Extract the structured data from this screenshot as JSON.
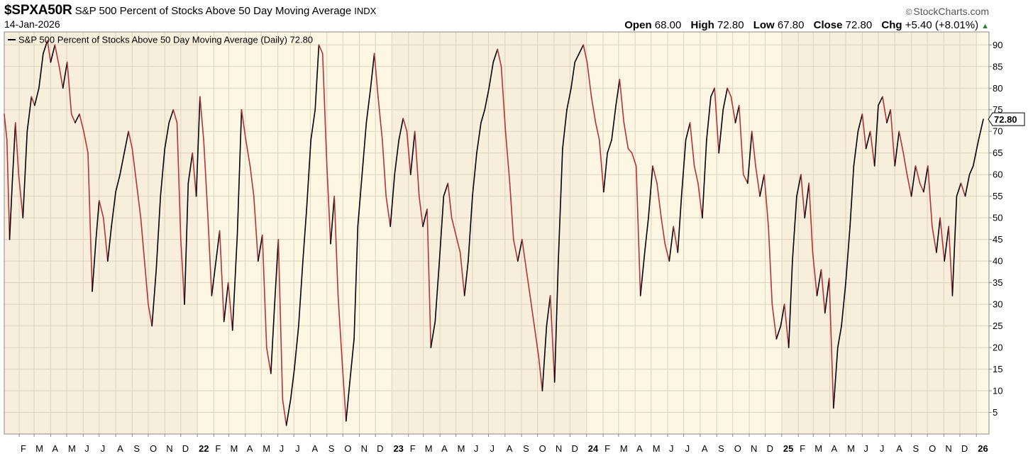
{
  "header": {
    "ticker": "$SPXA50R",
    "name": "S&P 500 Percent of Stocks Above 50 Day Moving Average",
    "exchange": "INDX",
    "date": "14-Jan-2026",
    "brand_symbol": "©",
    "brand": "StockCharts.com",
    "open_label": "Open",
    "open": "68.00",
    "high_label": "High",
    "high": "72.80",
    "low_label": "Low",
    "low": "67.80",
    "close_label": "Close",
    "close": "72.80",
    "chg_label": "Chg",
    "chg": "+5.40 (+8.01%)",
    "chg_arrow": "▲"
  },
  "legend": "S&P 500 Percent of Stocks Above 50 Day Moving Average (Daily) 72.80",
  "colors": {
    "up": "#000000",
    "down": "#b5323c",
    "band_a": "#f7efdb",
    "band_b": "#fdf6e3",
    "grid": "#ddd3bd",
    "last_value_bg": "#ffffff"
  },
  "chart_data": {
    "type": "line",
    "ylim": [
      0,
      93
    ],
    "yticks": [
      5,
      10,
      15,
      20,
      25,
      30,
      35,
      40,
      45,
      50,
      55,
      60,
      65,
      70,
      75,
      80,
      85,
      90
    ],
    "last_value": "72.80",
    "x_start": "2021-01-04",
    "x_end": "2026-01-14",
    "month_labels": [
      "F",
      "M",
      "A",
      "M",
      "J",
      "J",
      "A",
      "S",
      "O",
      "N",
      "D",
      "22",
      "F",
      "M",
      "A",
      "M",
      "J",
      "J",
      "A",
      "S",
      "O",
      "N",
      "D",
      "23",
      "F",
      "M",
      "A",
      "M",
      "J",
      "J",
      "A",
      "S",
      "O",
      "N",
      "D",
      "24",
      "F",
      "M",
      "A",
      "M",
      "J",
      "J",
      "A",
      "S",
      "O",
      "N",
      "D",
      "25",
      "F",
      "M",
      "A",
      "M",
      "J",
      "J",
      "A",
      "S",
      "O",
      "N",
      "D",
      "26"
    ],
    "month_dates": [
      "2021-02-01",
      "2021-03-01",
      "2021-04-01",
      "2021-05-01",
      "2021-06-01",
      "2021-07-01",
      "2021-08-01",
      "2021-09-01",
      "2021-10-01",
      "2021-11-01",
      "2021-12-01",
      "2022-01-01",
      "2022-02-01",
      "2022-03-01",
      "2022-04-01",
      "2022-05-01",
      "2022-06-01",
      "2022-07-01",
      "2022-08-01",
      "2022-09-01",
      "2022-10-01",
      "2022-11-01",
      "2022-12-01",
      "2023-01-01",
      "2023-02-01",
      "2023-03-01",
      "2023-04-01",
      "2023-05-01",
      "2023-06-01",
      "2023-07-01",
      "2023-08-01",
      "2023-09-01",
      "2023-10-01",
      "2023-11-01",
      "2023-12-01",
      "2024-01-01",
      "2024-02-01",
      "2024-03-01",
      "2024-04-01",
      "2024-05-01",
      "2024-06-01",
      "2024-07-01",
      "2024-08-01",
      "2024-09-01",
      "2024-10-01",
      "2024-11-01",
      "2024-12-01",
      "2025-01-01",
      "2025-02-01",
      "2025-03-01",
      "2025-04-01",
      "2025-05-01",
      "2025-06-01",
      "2025-07-01",
      "2025-08-01",
      "2025-09-01",
      "2025-10-01",
      "2025-11-01",
      "2025-12-01",
      "2026-01-01"
    ],
    "series": [
      {
        "points": [
          [
            "2021-01-04",
            74
          ],
          [
            "2021-01-09",
            68
          ],
          [
            "2021-01-14",
            45
          ],
          [
            "2021-01-19",
            58
          ],
          [
            "2021-01-25",
            72
          ],
          [
            "2021-01-31",
            60
          ],
          [
            "2021-02-08",
            50
          ],
          [
            "2021-02-16",
            70
          ],
          [
            "2021-02-24",
            78
          ],
          [
            "2021-03-02",
            76
          ],
          [
            "2021-03-10",
            80
          ],
          [
            "2021-03-18",
            88
          ],
          [
            "2021-03-26",
            91
          ],
          [
            "2021-04-01",
            86
          ],
          [
            "2021-04-09",
            90
          ],
          [
            "2021-04-17",
            85
          ],
          [
            "2021-04-24",
            80
          ],
          [
            "2021-05-02",
            86
          ],
          [
            "2021-05-10",
            74
          ],
          [
            "2021-05-17",
            72
          ],
          [
            "2021-05-25",
            74
          ],
          [
            "2021-06-02",
            70
          ],
          [
            "2021-06-10",
            65
          ],
          [
            "2021-06-18",
            33
          ],
          [
            "2021-06-25",
            45
          ],
          [
            "2021-07-01",
            54
          ],
          [
            "2021-07-09",
            50
          ],
          [
            "2021-07-17",
            40
          ],
          [
            "2021-07-24",
            48
          ],
          [
            "2021-08-01",
            56
          ],
          [
            "2021-08-09",
            60
          ],
          [
            "2021-08-17",
            65
          ],
          [
            "2021-08-25",
            70
          ],
          [
            "2021-09-01",
            66
          ],
          [
            "2021-09-09",
            58
          ],
          [
            "2021-09-17",
            50
          ],
          [
            "2021-09-24",
            40
          ],
          [
            "2021-10-01",
            30
          ],
          [
            "2021-10-08",
            25
          ],
          [
            "2021-10-16",
            38
          ],
          [
            "2021-10-24",
            55
          ],
          [
            "2021-11-01",
            66
          ],
          [
            "2021-11-09",
            72
          ],
          [
            "2021-11-17",
            75
          ],
          [
            "2021-11-24",
            72
          ],
          [
            "2021-12-01",
            45
          ],
          [
            "2021-12-08",
            30
          ],
          [
            "2021-12-15",
            58
          ],
          [
            "2021-12-23",
            65
          ],
          [
            "2021-12-30",
            55
          ],
          [
            "2022-01-06",
            78
          ],
          [
            "2022-01-13",
            68
          ],
          [
            "2022-01-21",
            50
          ],
          [
            "2022-01-28",
            32
          ],
          [
            "2022-02-05",
            40
          ],
          [
            "2022-02-12",
            47
          ],
          [
            "2022-02-20",
            26
          ],
          [
            "2022-02-28",
            35
          ],
          [
            "2022-03-08",
            24
          ],
          [
            "2022-03-17",
            46
          ],
          [
            "2022-03-25",
            75
          ],
          [
            "2022-04-02",
            68
          ],
          [
            "2022-04-10",
            62
          ],
          [
            "2022-04-17",
            55
          ],
          [
            "2022-04-25",
            40
          ],
          [
            "2022-05-03",
            46
          ],
          [
            "2022-05-11",
            20
          ],
          [
            "2022-05-19",
            14
          ],
          [
            "2022-05-26",
            30
          ],
          [
            "2022-06-02",
            45
          ],
          [
            "2022-06-10",
            8
          ],
          [
            "2022-06-17",
            2
          ],
          [
            "2022-06-25",
            8
          ],
          [
            "2022-07-02",
            15
          ],
          [
            "2022-07-10",
            25
          ],
          [
            "2022-07-18",
            40
          ],
          [
            "2022-07-25",
            52
          ],
          [
            "2022-08-02",
            68
          ],
          [
            "2022-08-10",
            75
          ],
          [
            "2022-08-17",
            90
          ],
          [
            "2022-08-24",
            88
          ],
          [
            "2022-09-01",
            62
          ],
          [
            "2022-09-08",
            44
          ],
          [
            "2022-09-15",
            55
          ],
          [
            "2022-09-22",
            32
          ],
          [
            "2022-09-30",
            16
          ],
          [
            "2022-10-07",
            3
          ],
          [
            "2022-10-14",
            12
          ],
          [
            "2022-10-22",
            22
          ],
          [
            "2022-10-29",
            48
          ],
          [
            "2022-11-06",
            60
          ],
          [
            "2022-11-14",
            72
          ],
          [
            "2022-11-22",
            80
          ],
          [
            "2022-11-29",
            88
          ],
          [
            "2022-12-06",
            78
          ],
          [
            "2022-12-14",
            68
          ],
          [
            "2022-12-21",
            55
          ],
          [
            "2022-12-29",
            48
          ],
          [
            "2023-01-06",
            60
          ],
          [
            "2023-01-14",
            68
          ],
          [
            "2023-01-22",
            73
          ],
          [
            "2023-01-29",
            70
          ],
          [
            "2023-02-05",
            60
          ],
          [
            "2023-02-13",
            70
          ],
          [
            "2023-02-21",
            55
          ],
          [
            "2023-02-28",
            48
          ],
          [
            "2023-03-08",
            52
          ],
          [
            "2023-03-15",
            20
          ],
          [
            "2023-03-23",
            26
          ],
          [
            "2023-03-31",
            40
          ],
          [
            "2023-04-08",
            55
          ],
          [
            "2023-04-16",
            58
          ],
          [
            "2023-04-23",
            50
          ],
          [
            "2023-05-01",
            46
          ],
          [
            "2023-05-09",
            42
          ],
          [
            "2023-05-17",
            32
          ],
          [
            "2023-05-24",
            40
          ],
          [
            "2023-06-01",
            55
          ],
          [
            "2023-06-09",
            65
          ],
          [
            "2023-06-17",
            72
          ],
          [
            "2023-06-24",
            75
          ],
          [
            "2023-07-02",
            80
          ],
          [
            "2023-07-10",
            86
          ],
          [
            "2023-07-18",
            89
          ],
          [
            "2023-07-25",
            85
          ],
          [
            "2023-08-02",
            70
          ],
          [
            "2023-08-10",
            58
          ],
          [
            "2023-08-17",
            45
          ],
          [
            "2023-08-25",
            40
          ],
          [
            "2023-09-02",
            45
          ],
          [
            "2023-09-10",
            38
          ],
          [
            "2023-09-17",
            32
          ],
          [
            "2023-09-25",
            25
          ],
          [
            "2023-10-03",
            18
          ],
          [
            "2023-10-10",
            10
          ],
          [
            "2023-10-18",
            25
          ],
          [
            "2023-10-25",
            32
          ],
          [
            "2023-11-02",
            12
          ],
          [
            "2023-11-09",
            40
          ],
          [
            "2023-11-17",
            66
          ],
          [
            "2023-11-25",
            75
          ],
          [
            "2023-12-03",
            80
          ],
          [
            "2023-12-10",
            86
          ],
          [
            "2023-12-18",
            88
          ],
          [
            "2023-12-26",
            90
          ],
          [
            "2024-01-02",
            86
          ],
          [
            "2024-01-10",
            78
          ],
          [
            "2024-01-18",
            72
          ],
          [
            "2024-01-25",
            68
          ],
          [
            "2024-02-02",
            56
          ],
          [
            "2024-02-09",
            65
          ],
          [
            "2024-02-17",
            68
          ],
          [
            "2024-02-25",
            76
          ],
          [
            "2024-03-03",
            82
          ],
          [
            "2024-03-11",
            72
          ],
          [
            "2024-03-19",
            66
          ],
          [
            "2024-03-26",
            65
          ],
          [
            "2024-04-03",
            62
          ],
          [
            "2024-04-11",
            32
          ],
          [
            "2024-04-19",
            42
          ],
          [
            "2024-04-26",
            50
          ],
          [
            "2024-05-04",
            62
          ],
          [
            "2024-05-12",
            58
          ],
          [
            "2024-05-20",
            50
          ],
          [
            "2024-05-27",
            44
          ],
          [
            "2024-06-04",
            40
          ],
          [
            "2024-06-12",
            48
          ],
          [
            "2024-06-20",
            42
          ],
          [
            "2024-06-27",
            55
          ],
          [
            "2024-07-05",
            68
          ],
          [
            "2024-07-13",
            72
          ],
          [
            "2024-07-21",
            62
          ],
          [
            "2024-07-28",
            58
          ],
          [
            "2024-08-05",
            50
          ],
          [
            "2024-08-13",
            68
          ],
          [
            "2024-08-21",
            78
          ],
          [
            "2024-08-28",
            80
          ],
          [
            "2024-09-05",
            65
          ],
          [
            "2024-09-13",
            75
          ],
          [
            "2024-09-21",
            80
          ],
          [
            "2024-09-28",
            78
          ],
          [
            "2024-10-06",
            72
          ],
          [
            "2024-10-13",
            76
          ],
          [
            "2024-10-21",
            60
          ],
          [
            "2024-10-29",
            58
          ],
          [
            "2024-11-06",
            70
          ],
          [
            "2024-11-13",
            62
          ],
          [
            "2024-11-21",
            55
          ],
          [
            "2024-11-29",
            60
          ],
          [
            "2024-12-07",
            48
          ],
          [
            "2024-12-14",
            30
          ],
          [
            "2024-12-22",
            22
          ],
          [
            "2024-12-30",
            25
          ],
          [
            "2025-01-06",
            30
          ],
          [
            "2025-01-14",
            20
          ],
          [
            "2025-01-21",
            40
          ],
          [
            "2025-01-29",
            55
          ],
          [
            "2025-02-06",
            60
          ],
          [
            "2025-02-13",
            50
          ],
          [
            "2025-02-21",
            58
          ],
          [
            "2025-02-28",
            42
          ],
          [
            "2025-03-08",
            32
          ],
          [
            "2025-03-16",
            38
          ],
          [
            "2025-03-23",
            28
          ],
          [
            "2025-03-31",
            36
          ],
          [
            "2025-04-08",
            6
          ],
          [
            "2025-04-16",
            20
          ],
          [
            "2025-04-23",
            25
          ],
          [
            "2025-05-01",
            35
          ],
          [
            "2025-05-09",
            48
          ],
          [
            "2025-05-16",
            62
          ],
          [
            "2025-05-24",
            70
          ],
          [
            "2025-06-01",
            74
          ],
          [
            "2025-06-08",
            66
          ],
          [
            "2025-06-16",
            70
          ],
          [
            "2025-06-24",
            62
          ],
          [
            "2025-07-01",
            76
          ],
          [
            "2025-07-09",
            78
          ],
          [
            "2025-07-17",
            72
          ],
          [
            "2025-07-24",
            75
          ],
          [
            "2025-08-01",
            62
          ],
          [
            "2025-08-09",
            70
          ],
          [
            "2025-08-17",
            65
          ],
          [
            "2025-08-24",
            60
          ],
          [
            "2025-09-01",
            55
          ],
          [
            "2025-09-09",
            62
          ],
          [
            "2025-09-17",
            58
          ],
          [
            "2025-09-24",
            56
          ],
          [
            "2025-10-02",
            62
          ],
          [
            "2025-10-10",
            48
          ],
          [
            "2025-10-18",
            42
          ],
          [
            "2025-10-25",
            50
          ],
          [
            "2025-11-02",
            40
          ],
          [
            "2025-11-10",
            48
          ],
          [
            "2025-11-17",
            32
          ],
          [
            "2025-11-25",
            55
          ],
          [
            "2025-12-03",
            58
          ],
          [
            "2025-12-11",
            55
          ],
          [
            "2025-12-19",
            60
          ],
          [
            "2025-12-26",
            62
          ],
          [
            "2026-01-05",
            68
          ],
          [
            "2026-01-14",
            72.8
          ]
        ]
      }
    ]
  }
}
